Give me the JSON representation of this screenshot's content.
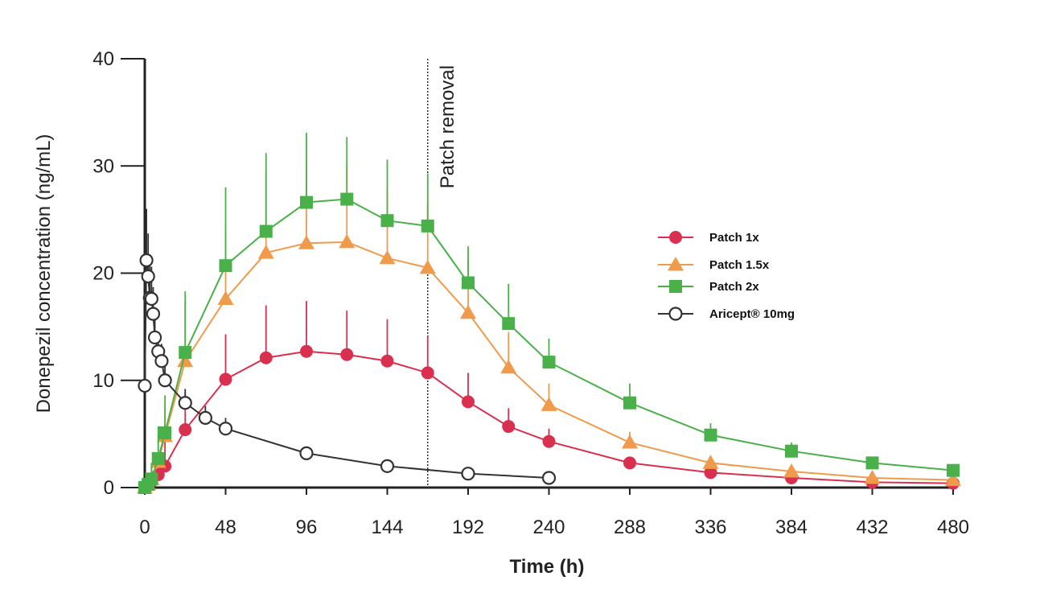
{
  "chart_data": {
    "type": "line",
    "title": "",
    "xlabel": "Time (h)",
    "ylabel": "Donepezil concentration (ng/mL)",
    "xlim": [
      0,
      480
    ],
    "ylim": [
      0,
      40
    ],
    "x_ticks": [
      "0",
      "48",
      "96",
      "144",
      "192",
      "240",
      "288",
      "336",
      "384",
      "432",
      "480"
    ],
    "y_ticks": [
      "0",
      "10",
      "20",
      "30",
      "40"
    ],
    "grid": false,
    "legend_position": "right",
    "annotation": {
      "label": "Patch removal",
      "x": 168
    },
    "series": [
      {
        "name": "Patch 1x",
        "color": "#d9304f",
        "marker": "circle",
        "x": [
          0,
          2,
          4,
          8,
          12,
          24,
          48,
          72,
          96,
          120,
          144,
          168,
          192,
          216,
          240,
          288,
          336,
          384,
          432,
          480
        ],
        "y": [
          0,
          0.3,
          0.6,
          1.2,
          2.0,
          5.4,
          10.1,
          12.1,
          12.7,
          12.4,
          11.8,
          10.7,
          8.0,
          5.7,
          4.3,
          2.3,
          1.4,
          0.9,
          0.5,
          0.4
        ],
        "err": [
          0,
          0.5,
          1.0,
          1.5,
          2.5,
          3.5,
          4.2,
          4.9,
          4.7,
          4.1,
          3.9,
          3.4,
          2.7,
          1.7,
          1.2,
          0.5,
          0.3,
          0.2,
          0.2,
          0.2
        ]
      },
      {
        "name": "Patch 1.5x",
        "color": "#f09a4c",
        "marker": "triangle",
        "x": [
          0,
          2,
          4,
          8,
          12,
          24,
          48,
          72,
          96,
          120,
          144,
          168,
          192,
          216,
          240,
          288,
          336,
          384,
          432,
          480
        ],
        "y": [
          0,
          0.3,
          0.8,
          2.4,
          4.8,
          11.8,
          17.6,
          21.9,
          22.8,
          22.9,
          21.4,
          20.5,
          16.3,
          11.2,
          7.7,
          4.2,
          2.3,
          1.5,
          0.9,
          0.7
        ],
        "err": [
          0,
          0.5,
          1.5,
          2.5,
          3.0,
          5.6,
          6.8,
          7.7,
          7.8,
          7.1,
          6.5,
          6.0,
          4.8,
          3.3,
          2.0,
          1.0,
          0.7,
          0.5,
          0.3,
          0.2
        ]
      },
      {
        "name": "Patch 2x",
        "color": "#49b04a",
        "marker": "square",
        "x": [
          0,
          2,
          4,
          8,
          12,
          24,
          48,
          72,
          96,
          120,
          144,
          168,
          192,
          216,
          240,
          288,
          336,
          384,
          432,
          480
        ],
        "y": [
          0,
          0.3,
          0.8,
          2.7,
          5.1,
          12.6,
          20.7,
          23.9,
          26.6,
          26.9,
          24.9,
          24.4,
          19.1,
          15.3,
          11.7,
          7.9,
          4.9,
          3.4,
          2.3,
          1.6
        ],
        "err": [
          0,
          0.5,
          1.5,
          3.0,
          3.5,
          5.7,
          7.3,
          7.3,
          6.5,
          5.8,
          5.7,
          4.9,
          3.4,
          3.7,
          2.2,
          1.8,
          1.1,
          0.8,
          0.5,
          0.3
        ]
      },
      {
        "name": "Aricept® 10mg",
        "color": "#333333",
        "marker": "open-circle",
        "x": [
          0,
          1,
          2,
          3,
          4,
          5,
          6,
          8,
          10,
          12,
          24,
          36,
          48,
          96,
          144,
          192,
          240
        ],
        "y": [
          9.5,
          21.2,
          19.7,
          17.7,
          17.6,
          16.2,
          14.0,
          12.7,
          11.8,
          10.0,
          7.9,
          6.5,
          5.5,
          3.2,
          2.0,
          1.3,
          0.9
        ],
        "err": [
          0,
          4.8,
          4.0,
          3.5,
          3.0,
          2.5,
          2.0,
          1.8,
          1.6,
          1.5,
          1.3,
          1.1,
          1.0,
          0.5,
          0.4,
          0.2,
          0.2
        ]
      }
    ]
  }
}
